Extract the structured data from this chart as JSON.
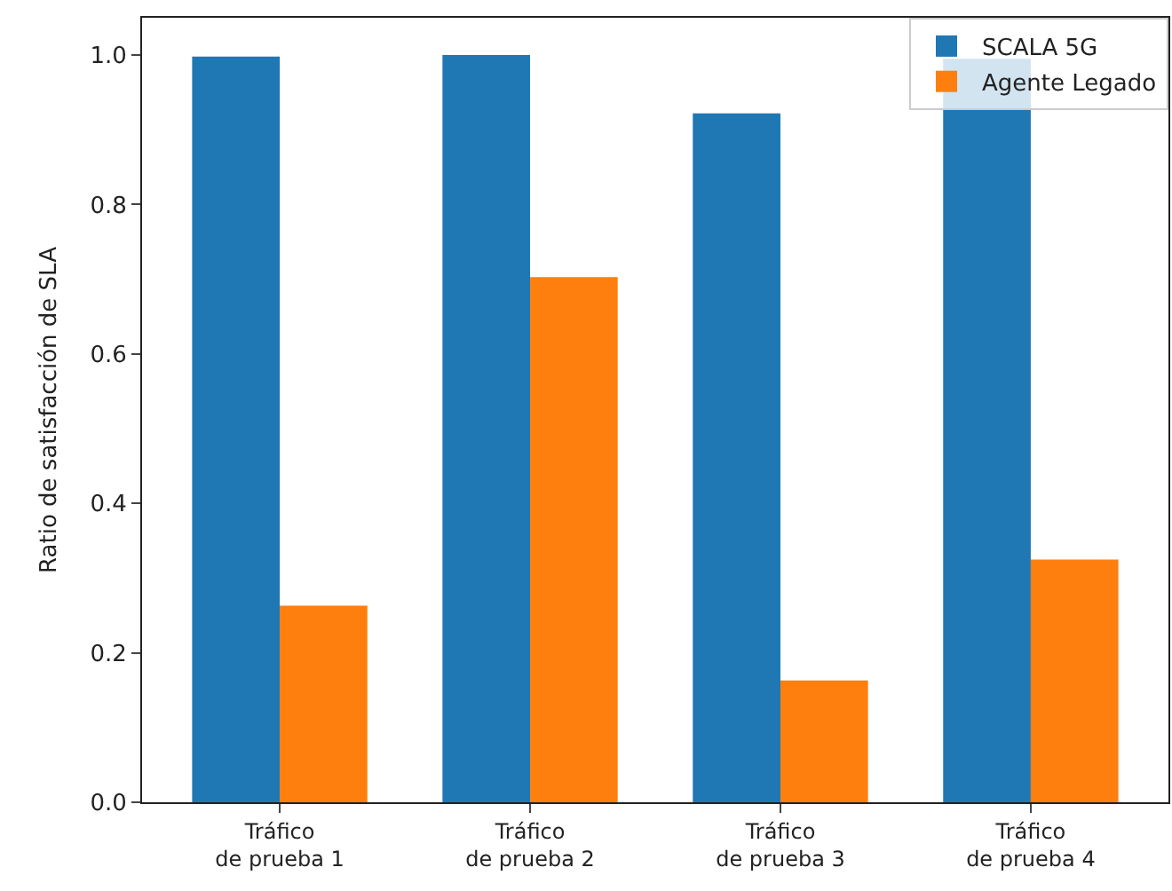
{
  "chart_data": {
    "type": "bar",
    "ylabel": "Ratio de satisfacción de SLA",
    "categories": [
      "Tráfico\nde prueba 1",
      "Tráfico\nde prueba 2",
      "Tráfico\nde prueba 3",
      "Tráfico\nde prueba 4"
    ],
    "series": [
      {
        "name": "SCALA 5G",
        "color": "#1f77b4",
        "values": [
          0.998,
          1.0,
          0.922,
          0.995
        ]
      },
      {
        "name": "Agente Legado",
        "color": "#ff7f0e",
        "values": [
          0.263,
          0.703,
          0.163,
          0.325
        ]
      }
    ],
    "ylim": [
      0,
      1.05
    ],
    "yticks": [
      {
        "value": 0.0,
        "label": "0.0"
      },
      {
        "value": 0.2,
        "label": "0.2"
      },
      {
        "value": 0.4,
        "label": "0.4"
      },
      {
        "value": 0.6,
        "label": "0.6"
      },
      {
        "value": 0.8,
        "label": "0.8"
      },
      {
        "value": 1.0,
        "label": "1.0"
      }
    ],
    "legend": "top right"
  }
}
